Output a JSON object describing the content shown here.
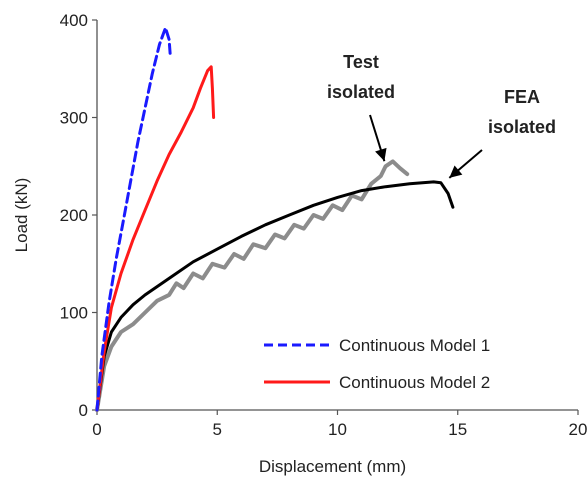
{
  "chart_data": {
    "type": "line",
    "title": "",
    "xlabel": "Displacement (mm)",
    "ylabel": "Load (kN)",
    "xlim": [
      0,
      20
    ],
    "ylim": [
      0,
      400
    ],
    "xticks": [
      0,
      5,
      10,
      15,
      20
    ],
    "yticks": [
      0,
      100,
      200,
      300,
      400
    ],
    "grid": false,
    "legend_position": "bottom-right",
    "series": [
      {
        "name": "Continuous Model 1",
        "color": "#1a1aff",
        "dash": "dashed",
        "in_legend": true,
        "points": [
          [
            0,
            0
          ],
          [
            0.2,
            55
          ],
          [
            0.5,
            110
          ],
          [
            0.8,
            155
          ],
          [
            1.1,
            195
          ],
          [
            1.4,
            235
          ],
          [
            1.7,
            275
          ],
          [
            2.0,
            310
          ],
          [
            2.3,
            345
          ],
          [
            2.6,
            375
          ],
          [
            2.85,
            392
          ],
          [
            3.0,
            380
          ],
          [
            3.05,
            362
          ]
        ]
      },
      {
        "name": "Continuous Model 2",
        "color": "#ff1a1a",
        "dash": "solid",
        "in_legend": true,
        "points": [
          [
            0,
            0
          ],
          [
            0.3,
            60
          ],
          [
            0.6,
            105
          ],
          [
            1.0,
            140
          ],
          [
            1.5,
            175
          ],
          [
            2.0,
            205
          ],
          [
            2.5,
            235
          ],
          [
            3.0,
            262
          ],
          [
            3.5,
            285
          ],
          [
            4.0,
            310
          ],
          [
            4.3,
            330
          ],
          [
            4.6,
            348
          ],
          [
            4.75,
            352
          ],
          [
            4.8,
            330
          ],
          [
            4.85,
            300
          ]
        ]
      },
      {
        "name": "Test isolated",
        "color": "#8c8c8c",
        "dash": "solid",
        "in_legend": false,
        "points": [
          [
            0,
            0
          ],
          [
            0.3,
            45
          ],
          [
            0.6,
            65
          ],
          [
            1.0,
            80
          ],
          [
            1.5,
            88
          ],
          [
            2.0,
            100
          ],
          [
            2.5,
            112
          ],
          [
            3.0,
            118
          ],
          [
            3.3,
            130
          ],
          [
            3.6,
            125
          ],
          [
            4.0,
            140
          ],
          [
            4.4,
            135
          ],
          [
            4.8,
            150
          ],
          [
            5.3,
            146
          ],
          [
            5.7,
            160
          ],
          [
            6.1,
            155
          ],
          [
            6.5,
            170
          ],
          [
            7.0,
            166
          ],
          [
            7.4,
            180
          ],
          [
            7.8,
            176
          ],
          [
            8.2,
            190
          ],
          [
            8.6,
            186
          ],
          [
            9.0,
            200
          ],
          [
            9.4,
            196
          ],
          [
            9.8,
            210
          ],
          [
            10.2,
            205
          ],
          [
            10.6,
            220
          ],
          [
            11.0,
            216
          ],
          [
            11.4,
            232
          ],
          [
            11.8,
            240
          ],
          [
            12.0,
            250
          ],
          [
            12.3,
            255
          ],
          [
            12.6,
            248
          ],
          [
            12.9,
            242
          ]
        ]
      },
      {
        "name": "FEA isolated",
        "color": "#000000",
        "dash": "solid",
        "in_legend": false,
        "points": [
          [
            0,
            0
          ],
          [
            0.3,
            55
          ],
          [
            0.6,
            80
          ],
          [
            1.0,
            95
          ],
          [
            1.5,
            108
          ],
          [
            2.0,
            118
          ],
          [
            3.0,
            135
          ],
          [
            4.0,
            152
          ],
          [
            5.0,
            165
          ],
          [
            6.0,
            178
          ],
          [
            7.0,
            190
          ],
          [
            8.0,
            200
          ],
          [
            9.0,
            210
          ],
          [
            10.0,
            218
          ],
          [
            11.0,
            225
          ],
          [
            12.0,
            229
          ],
          [
            13.0,
            232
          ],
          [
            14.0,
            234
          ],
          [
            14.3,
            233
          ],
          [
            14.6,
            222
          ],
          [
            14.8,
            208
          ]
        ]
      }
    ],
    "annotations": [
      {
        "text_lines": [
          "Test",
          "isolated"
        ],
        "arrow_to": [
          11.7,
          246
        ]
      },
      {
        "text_lines": [
          "FEA",
          "isolated"
        ],
        "arrow_to": [
          14.4,
          234
        ]
      }
    ]
  }
}
